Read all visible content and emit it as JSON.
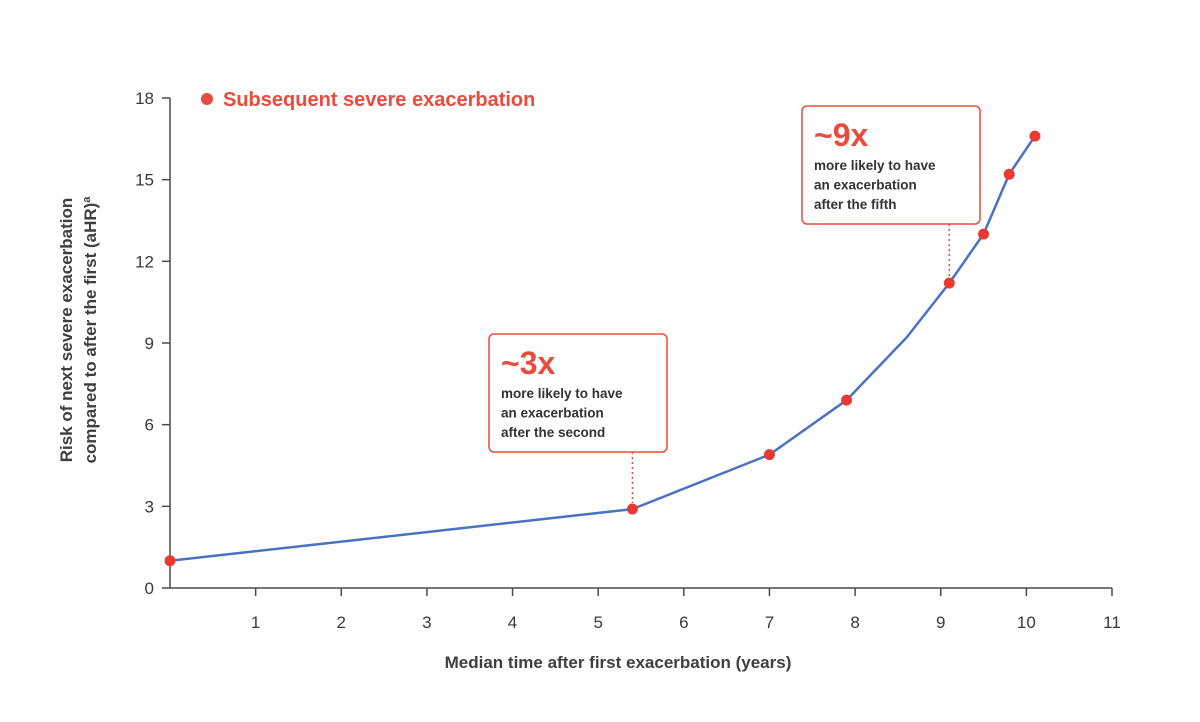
{
  "colors": {
    "line": "#4a72c4",
    "marker": "#e83a33",
    "accent": "#e94b3c",
    "axis": "#4a4a4a",
    "text": "#3a3a3a"
  },
  "chart_data": {
    "type": "line",
    "title": "",
    "xlabel": "Median time after first exacerbation (years)",
    "ylabel_line1": "Risk of next severe exacerbation",
    "ylabel_line2": "compared to after the first (aHR)",
    "ylabel_superscript": "a",
    "xlim": [
      0,
      11
    ],
    "ylim": [
      0,
      18
    ],
    "xticks": [
      "1",
      "2",
      "3",
      "4",
      "5",
      "6",
      "7",
      "8",
      "9",
      "10",
      "11"
    ],
    "yticks": [
      "0",
      "3",
      "6",
      "9",
      "12",
      "15",
      "18"
    ],
    "grid": false,
    "legend": {
      "position": "top-left",
      "entries": [
        "Subsequent severe exacerbation"
      ]
    },
    "line": [
      {
        "x": 0,
        "y": 1.0
      },
      {
        "x": 5.4,
        "y": 2.9
      },
      {
        "x": 7.0,
        "y": 4.9
      },
      {
        "x": 7.9,
        "y": 6.9
      },
      {
        "x": 8.6,
        "y": 9.2
      },
      {
        "x": 9.1,
        "y": 11.2
      },
      {
        "x": 9.5,
        "y": 13.0
      },
      {
        "x": 9.8,
        "y": 15.2
      },
      {
        "x": 10.1,
        "y": 16.6
      }
    ],
    "markers": [
      {
        "x": 0,
        "y": 1.0
      },
      {
        "x": 5.4,
        "y": 2.9
      },
      {
        "x": 7.0,
        "y": 4.9
      },
      {
        "x": 7.9,
        "y": 6.9
      },
      {
        "x": 9.1,
        "y": 11.2
      },
      {
        "x": 9.5,
        "y": 13.0
      },
      {
        "x": 9.8,
        "y": 15.2
      },
      {
        "x": 10.1,
        "y": 16.6
      }
    ],
    "annotations": [
      {
        "big": "~3x",
        "lines": [
          "more likely to have",
          "an exacerbation",
          "after the second"
        ],
        "point_index": 1
      },
      {
        "big": "~9x",
        "lines": [
          "more likely to have",
          "an exacerbation",
          "after the fifth"
        ],
        "point_index": 4
      }
    ]
  }
}
